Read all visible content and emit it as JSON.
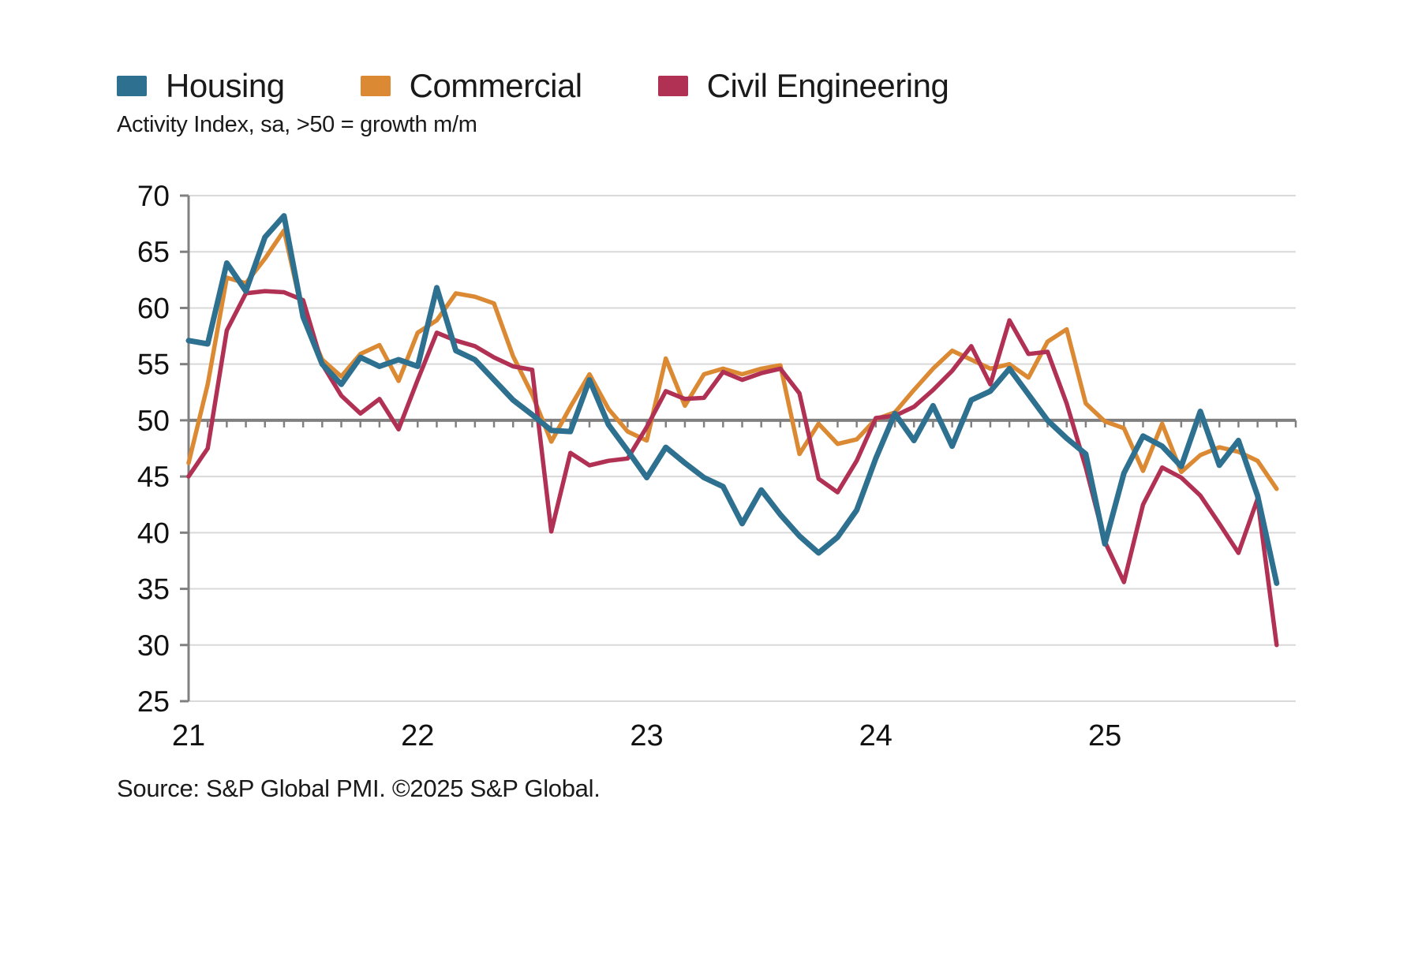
{
  "legend": {
    "items": [
      {
        "label": "Housing",
        "color": "#2E708F"
      },
      {
        "label": "Commercial",
        "color": "#DB8A33"
      },
      {
        "label": "Civil Engineering",
        "color": "#B13154"
      }
    ]
  },
  "subtitle": "Activity Index, sa, >50 = growth m/m",
  "source": "Source: S&P Global PMI. ©2025 S&P Global.",
  "chart_data": {
    "type": "line",
    "frequency": "monthly",
    "start": "Jan 2021",
    "end": "Oct 2025",
    "x_tick_labels": [
      "21",
      "22",
      "23",
      "24",
      "25"
    ],
    "ylim": [
      25,
      70
    ],
    "y_ticks": [
      70,
      65,
      60,
      55,
      50,
      45,
      40,
      35,
      30,
      25
    ],
    "reference_line": 50,
    "grid": "horizontal",
    "legend_position": "top-left",
    "series": [
      {
        "name": "Housing",
        "color": "#2E708F",
        "values": [
          57.1,
          56.8,
          64.0,
          61.5,
          66.3,
          68.2,
          59.2,
          55.0,
          53.2,
          55.6,
          54.8,
          55.4,
          54.8,
          61.8,
          56.2,
          55.4,
          53.6,
          51.8,
          50.5,
          49.1,
          49.0,
          53.6,
          49.6,
          47.3,
          44.9,
          47.6,
          46.2,
          44.9,
          44.1,
          40.8,
          43.8,
          41.6,
          39.7,
          38.2,
          39.6,
          42.0,
          46.6,
          50.6,
          48.2,
          51.3,
          47.7,
          51.8,
          52.6,
          54.6,
          52.3,
          50.0,
          48.4,
          47.0,
          39.0,
          45.3,
          48.6,
          47.7,
          45.9,
          50.8,
          46.0,
          48.2,
          43.3,
          35.5
        ]
      },
      {
        "name": "Commercial",
        "color": "#DB8A33",
        "values": [
          46.2,
          53.2,
          62.7,
          62.2,
          64.4,
          66.9,
          59.3,
          55.4,
          53.9,
          55.9,
          56.7,
          53.5,
          57.8,
          58.9,
          61.3,
          61.0,
          60.4,
          55.7,
          52.3,
          48.1,
          51.2,
          54.1,
          51.0,
          49.0,
          48.2,
          55.5,
          51.3,
          54.1,
          54.6,
          54.1,
          54.6,
          54.9,
          47.0,
          49.7,
          47.9,
          48.3,
          50.1,
          50.7,
          52.7,
          54.6,
          56.2,
          55.4,
          54.6,
          55.0,
          53.8,
          57.0,
          58.1,
          51.5,
          49.9,
          49.3,
          45.5,
          49.7,
          45.4,
          46.9,
          47.6,
          47.2,
          46.4,
          43.9
        ]
      },
      {
        "name": "Civil Engineering",
        "color": "#B13154",
        "values": [
          45.0,
          47.5,
          58.0,
          61.3,
          61.5,
          61.4,
          60.7,
          55.0,
          52.2,
          50.6,
          51.9,
          49.2,
          53.6,
          57.8,
          57.1,
          56.6,
          55.6,
          54.8,
          54.5,
          40.1,
          47.1,
          46.0,
          46.4,
          46.6,
          49.4,
          52.6,
          51.9,
          52.0,
          54.3,
          53.6,
          54.2,
          54.6,
          52.4,
          44.8,
          43.6,
          46.4,
          50.2,
          50.4,
          51.2,
          52.7,
          54.4,
          56.6,
          53.2,
          58.9,
          55.9,
          56.1,
          51.5,
          45.8,
          39.2,
          35.6,
          42.5,
          45.8,
          44.9,
          43.3,
          40.8,
          38.2,
          43.0,
          30.0
        ]
      }
    ]
  }
}
